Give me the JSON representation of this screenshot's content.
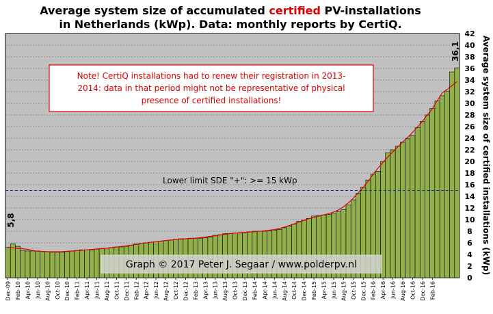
{
  "title": {
    "line1_pre": "Average system size of accumulated ",
    "line1_highlight": "certified",
    "line1_post": " PV-installations",
    "line2": "in Netherlands (kWp). Data: monthly reports by CertiQ.",
    "highlight_color": "#e00000"
  },
  "note": {
    "line1": "Note! CertiQ installations had to renew their registration in 2013-",
    "line2": "2014:  data in  that period  might  not  be representative of physical",
    "line3": "presence of certified installations!",
    "color": "#e00000"
  },
  "sde_limit": {
    "label": "Lower limit  SDE \"+\":   >=  15  kWp",
    "value": 15
  },
  "credit": "Graph © 2017 Peter J. Segaar / www.polderpv.nl",
  "first_value_label": "5,8",
  "last_value_label": "36,1",
  "colors": {
    "plot_bg": "#c0c0c0",
    "bar": "#92b04a",
    "trend": "#e00000",
    "sde_line": "#2020c0",
    "gridline": "#808080"
  },
  "chart_data": {
    "type": "bar",
    "title": "Average system size of accumulated certified PV-installations in Netherlands (kWp). Data: monthly reports by CertiQ.",
    "ylabel": "Average system size of certified installations  (kWp)",
    "xlabel": "",
    "ylim": [
      0,
      42
    ],
    "yticks": [
      0,
      2,
      4,
      6,
      8,
      10,
      12,
      14,
      16,
      18,
      20,
      22,
      24,
      26,
      28,
      30,
      32,
      34,
      36,
      38,
      40,
      42
    ],
    "grid": true,
    "start_month": "Dec-09",
    "x_tick_labels": [
      "Dec-09",
      "Feb-10",
      "Apr-10",
      "Jun-10",
      "Aug-10",
      "Oct-10",
      "Dec-10",
      "Feb-11",
      "Apr-11",
      "Jun-11",
      "Aug-11",
      "Oct-11",
      "Dec-11",
      "Feb-12",
      "Apr-12",
      "Jun-12",
      "Aug-12",
      "Oct-12",
      "Dec-12",
      "Feb-13",
      "Apr-13",
      "Jun-13",
      "Aug-13",
      "Oct-13",
      "Dec-13",
      "Feb-14",
      "Apr-14",
      "Jun-14",
      "Aug-14",
      "Oct-14",
      "Dec-14",
      "Feb-15",
      "Apr-15",
      "Jun-15",
      "Aug-15",
      "Oct-15",
      "Dec-15",
      "Feb-16",
      "Apr-16",
      "Jun-16",
      "Aug-16",
      "Oct-16",
      "Dec-16",
      "Feb-16"
    ],
    "values": [
      5.2,
      5.8,
      5.4,
      4.7,
      4.6,
      4.6,
      4.6,
      4.5,
      4.5,
      4.4,
      4.4,
      4.4,
      4.5,
      4.6,
      4.7,
      4.8,
      4.8,
      4.8,
      4.9,
      5.0,
      5.1,
      5.2,
      5.3,
      5.3,
      5.4,
      5.6,
      5.8,
      5.9,
      6.0,
      6.1,
      6.2,
      6.3,
      6.4,
      6.5,
      6.6,
      6.7,
      6.7,
      6.8,
      6.8,
      6.8,
      6.9,
      7.0,
      7.3,
      7.4,
      7.6,
      7.6,
      7.7,
      7.7,
      7.8,
      7.9,
      8.0,
      8.0,
      8.0,
      8.1,
      8.2,
      8.3,
      8.6,
      8.9,
      9.2,
      9.7,
      9.9,
      10.2,
      10.6,
      10.7,
      10.8,
      10.9,
      11.1,
      11.4,
      11.7,
      12.5,
      13.4,
      14.5,
      15.6,
      16.8,
      17.8,
      18.3,
      20.0,
      21.5,
      22.0,
      22.6,
      23.3,
      23.9,
      24.5,
      25.8,
      26.9,
      28.0,
      29.1,
      30.4,
      31.3,
      32.1,
      35.4,
      36.1
    ],
    "value_labels": [
      {
        "index": 1,
        "text": "5,8"
      },
      {
        "index": 91,
        "text": "36,1"
      }
    ],
    "series": [
      {
        "name": "",
        "type": "bar"
      },
      {
        "name": "",
        "type": "trendline"
      }
    ],
    "reference_line": {
      "value": 15,
      "label": "Lower limit  SDE \"+\":   >=  15  kWp"
    }
  }
}
